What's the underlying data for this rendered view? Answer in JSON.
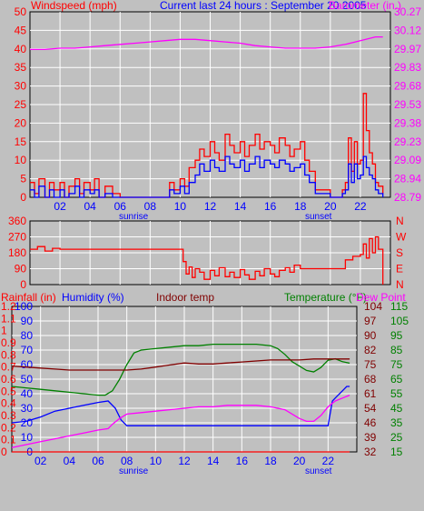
{
  "colors": {
    "background": "#c0c0c0",
    "grid": "#ffffff",
    "windspeed": "#ff0000",
    "wind_gust": "#ff0000",
    "wind_avg": "#0000ff",
    "barometer": "#ff00ff",
    "direction": "#ff0000",
    "rain": "#ff0000",
    "humidity": "#0000ff",
    "indoor": "#800000",
    "temperature": "#008000",
    "dewpoint": "#ff00ff"
  },
  "chart_data": [
    {
      "type": "line",
      "title": "Current last 24 hours : September 20 2005",
      "ylabel_left": "Windspeed (mph)",
      "ylabel_right": "Barometer (in.)",
      "ylim_left": [
        0,
        50
      ],
      "yticks_left": [
        "0",
        "5",
        "10",
        "15",
        "20",
        "25",
        "30",
        "35",
        "40",
        "45",
        "50"
      ],
      "ylim_right": [
        28.79,
        30.27
      ],
      "yticks_right": [
        "28.79",
        "28.94",
        "29.09",
        "29.23",
        "29.38",
        "29.53",
        "29.68",
        "29.83",
        "29.97",
        "30.12",
        "30.27"
      ],
      "xlim": [
        0,
        24
      ],
      "xticks": [
        "02",
        "04",
        "06",
        "08",
        "10",
        "12",
        "14",
        "16",
        "18",
        "20",
        "22"
      ],
      "xtick_positions": [
        2,
        4,
        6,
        8,
        10,
        12,
        14,
        16,
        18,
        20,
        22
      ],
      "markers": [
        {
          "label": "sunrise",
          "x": 6.7
        },
        {
          "label": "sunset",
          "x": 19.1
        }
      ],
      "grid": true,
      "series": [
        {
          "key": "barometer",
          "axis": "right",
          "x": [
            0,
            1,
            2,
            3,
            4,
            5,
            6,
            7,
            8,
            9,
            10,
            11,
            12,
            13,
            14,
            15,
            16,
            17,
            18,
            19,
            20,
            21,
            22,
            23,
            23.5
          ],
          "y": [
            29.97,
            29.97,
            29.98,
            29.98,
            29.99,
            30.0,
            30.01,
            30.02,
            30.03,
            30.04,
            30.05,
            30.05,
            30.04,
            30.03,
            30.02,
            30.0,
            29.99,
            29.98,
            29.98,
            29.98,
            29.99,
            30.01,
            30.04,
            30.07,
            30.07
          ]
        },
        {
          "key": "wind_gust",
          "axis": "left",
          "x": [
            0,
            0.3,
            0.6,
            1,
            1.3,
            1.6,
            2,
            2.3,
            2.6,
            3,
            3.3,
            3.6,
            4,
            4.3,
            4.6,
            5,
            5.5,
            6,
            7,
            8,
            9,
            9.3,
            9.6,
            10,
            10.3,
            10.6,
            11,
            11.3,
            11.6,
            12,
            12.3,
            12.6,
            13,
            13.3,
            13.6,
            14,
            14.3,
            14.6,
            15,
            15.3,
            15.6,
            16,
            16.3,
            16.6,
            17,
            17.3,
            17.6,
            18,
            18.3,
            18.6,
            19,
            20,
            20.5,
            20.8,
            21,
            21.2,
            21.4,
            21.6,
            21.8,
            22,
            22.2,
            22.4,
            22.6,
            22.8,
            23,
            23.2,
            23.5
          ],
          "y": [
            4,
            1,
            5,
            0,
            4,
            2,
            4,
            0,
            3,
            5,
            1,
            4,
            2,
            5,
            0,
            3,
            1,
            0,
            0,
            0,
            0,
            4,
            2,
            5,
            3,
            8,
            10,
            13,
            11,
            15,
            12,
            10,
            17,
            14,
            12,
            15,
            11,
            14,
            17,
            13,
            15,
            14,
            12,
            16,
            14,
            11,
            13,
            15,
            10,
            7,
            2,
            0,
            0,
            2,
            4,
            16,
            7,
            15,
            9,
            10,
            28,
            18,
            12,
            9,
            4,
            3,
            1
          ]
        },
        {
          "key": "wind_avg",
          "axis": "left",
          "x": [
            0,
            0.3,
            0.6,
            1,
            1.3,
            1.6,
            2,
            2.3,
            2.6,
            3,
            3.3,
            3.6,
            4,
            4.3,
            4.6,
            5,
            5.5,
            6,
            7,
            8,
            9,
            9.3,
            9.6,
            10,
            10.3,
            10.6,
            11,
            11.3,
            11.6,
            12,
            12.3,
            12.6,
            13,
            13.3,
            13.6,
            14,
            14.3,
            14.6,
            15,
            15.3,
            15.6,
            16,
            16.3,
            16.6,
            17,
            17.3,
            17.6,
            18,
            18.3,
            18.6,
            19,
            20,
            20.5,
            20.8,
            21,
            21.2,
            21.4,
            21.6,
            21.8,
            22,
            22.2,
            22.4,
            22.6,
            22.8,
            23,
            23.2,
            23.5
          ],
          "y": [
            2,
            0,
            3,
            0,
            2,
            0,
            2,
            0,
            1,
            3,
            0,
            2,
            1,
            2,
            0,
            1,
            0,
            0,
            0,
            0,
            0,
            2,
            1,
            3,
            1,
            4,
            6,
            9,
            7,
            10,
            8,
            7,
            11,
            9,
            8,
            10,
            7,
            9,
            11,
            8,
            10,
            9,
            8,
            10,
            9,
            7,
            8,
            9,
            6,
            4,
            1,
            0,
            0,
            1,
            2,
            9,
            4,
            9,
            5,
            6,
            11,
            8,
            6,
            5,
            2,
            1,
            0
          ]
        }
      ]
    },
    {
      "type": "line",
      "title": "",
      "ylabel_left": "",
      "ylim_left": [
        0,
        360
      ],
      "yticks_left": [
        "0",
        "90",
        "180",
        "270",
        "360"
      ],
      "yticks_right": [
        "N",
        "E",
        "S",
        "W",
        "N"
      ],
      "xlim": [
        0,
        24
      ],
      "grid": true,
      "series": [
        {
          "key": "direction",
          "axis": "left",
          "x": [
            0,
            0.5,
            1,
            1.5,
            2,
            3,
            4,
            5,
            6,
            7,
            8,
            9,
            9.5,
            10,
            10.2,
            10.4,
            10.6,
            10.8,
            11,
            11.3,
            11.6,
            12,
            12.3,
            12.6,
            13,
            13.3,
            13.6,
            14,
            14.3,
            14.6,
            15,
            15.3,
            15.6,
            16,
            16.3,
            16.6,
            17,
            17.3,
            17.6,
            18,
            18.5,
            19,
            20,
            20.5,
            21,
            21.5,
            22,
            22.2,
            22.4,
            22.6,
            22.8,
            23,
            23.2,
            23.5
          ],
          "y": [
            200,
            215,
            190,
            205,
            200,
            200,
            200,
            200,
            200,
            200,
            200,
            200,
            200,
            200,
            130,
            60,
            100,
            40,
            90,
            70,
            30,
            80,
            50,
            95,
            45,
            70,
            40,
            85,
            55,
            30,
            75,
            50,
            90,
            60,
            45,
            80,
            95,
            70,
            110,
            90,
            90,
            90,
            90,
            90,
            140,
            160,
            170,
            230,
            150,
            260,
            180,
            270,
            200,
            0
          ]
        }
      ]
    },
    {
      "type": "line",
      "title": "",
      "labels_top": {
        "rain": "Rainfall (in)",
        "humidity": "Humidity (%)",
        "indoor": "Indoor temp",
        "temperature": "Temperature (°F)",
        "dewpoint": "Dew Point"
      },
      "ylim_humidity": [
        0,
        100
      ],
      "yticks_humidity": [
        "0",
        "10",
        "20",
        "30",
        "40",
        "50",
        "60",
        "70",
        "80",
        "90",
        "100"
      ],
      "yticks_rain": [
        "0",
        "0.1",
        "0.2",
        "0.3",
        "0.4",
        "0.5",
        "0.6",
        "0.7",
        "0.8",
        "0.9",
        "1",
        "1.1",
        "1.2"
      ],
      "ylim_temp": [
        15,
        115
      ],
      "yticks_temp": [
        "15",
        "25",
        "35",
        "45",
        "55",
        "65",
        "75",
        "85",
        "95",
        "105",
        "115"
      ],
      "yticks_temp_indoor": [
        "32",
        "39",
        "46",
        "54",
        "61",
        "68",
        "75",
        "82",
        "90",
        "97",
        "104"
      ],
      "xlim": [
        0,
        24
      ],
      "xticks": [
        "02",
        "04",
        "06",
        "08",
        "10",
        "12",
        "14",
        "16",
        "18",
        "20",
        "22"
      ],
      "xtick_positions": [
        2,
        4,
        6,
        8,
        10,
        12,
        14,
        16,
        18,
        20,
        22
      ],
      "markers": [
        {
          "label": "sunrise",
          "x": 6.7
        },
        {
          "label": "sunset",
          "x": 19.1
        }
      ],
      "grid": true,
      "series": [
        {
          "key": "rain",
          "axis": "rain",
          "x": [
            0,
            23.5
          ],
          "y": [
            0,
            0
          ]
        },
        {
          "key": "humidity",
          "axis": "humidity",
          "x": [
            0,
            1,
            2,
            3,
            4,
            5,
            6,
            6.7,
            7.2,
            7.6,
            8,
            9,
            10,
            11,
            12,
            13,
            14,
            15,
            16,
            17,
            18,
            19,
            20,
            21,
            22,
            22.3,
            22.6,
            23,
            23.3,
            23.5
          ],
          "y": [
            20,
            21,
            24,
            28,
            30,
            32,
            34,
            35,
            30,
            22,
            18,
            18,
            18,
            18,
            18,
            18,
            18,
            18,
            18,
            18,
            18,
            18,
            18,
            18,
            18,
            35,
            38,
            42,
            45,
            45
          ]
        },
        {
          "key": "temperature",
          "axis": "temp",
          "x": [
            0,
            1,
            2,
            3,
            4,
            5,
            6,
            6.5,
            7,
            7.5,
            8,
            8.5,
            9,
            10,
            11,
            12,
            13,
            14,
            15,
            16,
            17,
            18,
            18.5,
            19,
            19.5,
            20,
            20.5,
            21,
            21.5,
            22,
            22.5,
            23,
            23.5
          ],
          "y": [
            60,
            59,
            58,
            57,
            56,
            55,
            54,
            54,
            57,
            65,
            75,
            83,
            85,
            86,
            87,
            88,
            88,
            89,
            89,
            89,
            89,
            88,
            86,
            82,
            77,
            74,
            71,
            70,
            73,
            78,
            79,
            77,
            76
          ]
        },
        {
          "key": "indoor",
          "axis": "temp_indoor",
          "x": [
            0,
            1,
            2,
            3,
            4,
            5,
            6,
            7,
            8,
            9,
            10,
            11,
            12,
            13,
            14,
            15,
            16,
            17,
            18,
            19,
            20,
            21,
            22,
            23,
            23.5
          ],
          "y": [
            74.5,
            74,
            73.5,
            73,
            72.5,
            72.5,
            72.5,
            72.5,
            72.5,
            73,
            74,
            75,
            76,
            75.5,
            75.5,
            76,
            76.5,
            77,
            77.5,
            77.5,
            77.5,
            78,
            78,
            78,
            78
          ]
        },
        {
          "key": "dewpoint",
          "axis": "temp",
          "x": [
            0,
            1,
            2,
            3,
            4,
            5,
            6,
            6.7,
            7,
            7.5,
            8,
            9,
            10,
            11,
            12,
            13,
            14,
            15,
            16,
            17,
            18,
            19,
            19.5,
            20,
            20.5,
            21,
            21.5,
            22,
            22.5,
            23,
            23.5
          ],
          "y": [
            18,
            20,
            22,
            24,
            26,
            28,
            30,
            31,
            34,
            38,
            41,
            42,
            43,
            44,
            45,
            46,
            46,
            47,
            47,
            47,
            46,
            44,
            41,
            38,
            36,
            36,
            40,
            46,
            50,
            52,
            54
          ]
        }
      ]
    }
  ]
}
